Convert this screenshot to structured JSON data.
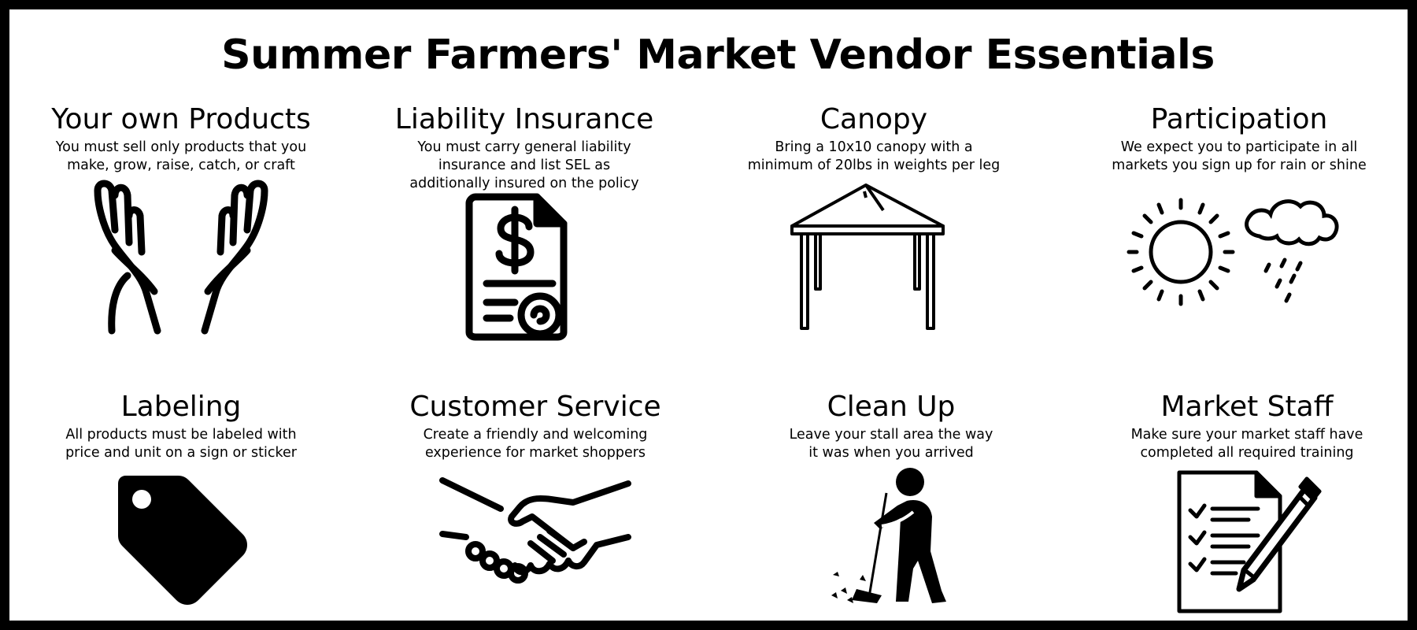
{
  "title": "Summer Farmers' Market Vendor Essentials",
  "cards": [
    {
      "title": "Your own Products",
      "text": "You must sell only products that you\nmake, grow, raise, catch, or craft",
      "icon": "open-hands-icon"
    },
    {
      "title": "Liability Insurance",
      "text": "You must carry general liability\ninsurance and list SEL as\nadditionally insured on the policy",
      "icon": "insurance-document-icon"
    },
    {
      "title": "Canopy",
      "text": "Bring a 10x10 canopy with a\nminimum of 20lbs in weights per leg",
      "icon": "canopy-tent-icon"
    },
    {
      "title": "Participation",
      "text": "We expect you to participate in all\nmarkets you sign up for rain or shine",
      "icon": "sun-and-rain-cloud-icon"
    },
    {
      "title": "Labeling",
      "text": "All products must be labeled with\nprice and unit on a sign or sticker",
      "icon": "price-tag-icon"
    },
    {
      "title": "Customer Service",
      "text": "Create a friendly and welcoming\nexperience for market shoppers",
      "icon": "handshake-icon"
    },
    {
      "title": "Clean Up",
      "text": "Leave your stall area the way\nit was when you arrived",
      "icon": "sweeping-person-icon"
    },
    {
      "title": "Market Staff",
      "text": "Make sure your market staff have\ncompleted all required training",
      "icon": "checklist-pencil-icon"
    }
  ]
}
